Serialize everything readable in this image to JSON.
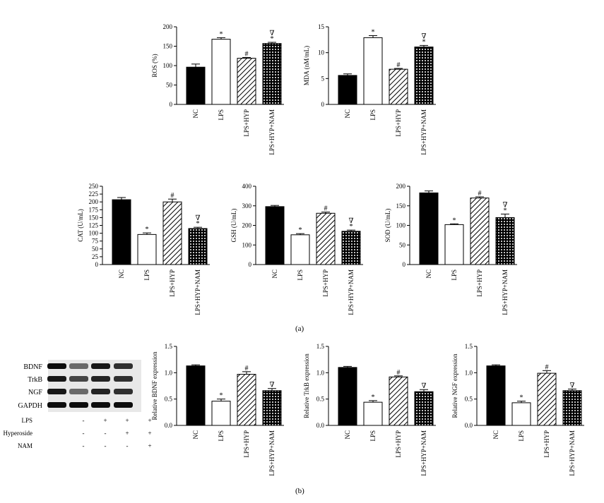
{
  "panel_labels": {
    "a": "(a)",
    "b": "(b)"
  },
  "western_blot": {
    "bands": [
      "BDNF",
      "TrkB",
      "NGF",
      "GAPDH"
    ],
    "treatments": [
      {
        "label": "LPS",
        "marks": [
          "-",
          "+",
          "+",
          "+"
        ]
      },
      {
        "label": "Hyperoside",
        "marks": [
          "-",
          "-",
          "+",
          "+"
        ]
      },
      {
        "label": "NAM",
        "marks": [
          "-",
          "-",
          "-",
          "+"
        ]
      }
    ]
  },
  "colors": {
    "bar_fill": "#000000",
    "bar_stroke": "#000000",
    "empty_fill": "#ffffff",
    "axis": "#000000"
  },
  "chart_data": [
    {
      "id": "ros",
      "type": "bar",
      "ylabel": "ROS (%)",
      "categories": [
        "NC",
        "LPS",
        "LPS+HYP",
        "LPS+HYP+NAM"
      ],
      "fills": [
        "solid",
        "white",
        "hatch",
        "dots"
      ],
      "values": [
        96,
        168,
        119,
        157
      ],
      "errors": [
        8,
        4,
        2,
        3
      ],
      "annotations": [
        "",
        "*",
        "#",
        "∇\n*"
      ],
      "ylim": [
        0,
        200
      ],
      "yticks": [
        "0",
        "50",
        "100",
        "150",
        "200"
      ]
    },
    {
      "id": "mda",
      "type": "bar",
      "ylabel": "MDA (nM/mL)",
      "categories": [
        "NC",
        "LPS",
        "LPS+HYP",
        "LPS+HYP+NAM"
      ],
      "fills": [
        "solid",
        "white",
        "hatch",
        "dots"
      ],
      "values": [
        5.6,
        12.9,
        6.8,
        11.1
      ],
      "errors": [
        0.3,
        0.4,
        0.15,
        0.3
      ],
      "annotations": [
        "",
        "*",
        "#",
        "∇\n*"
      ],
      "ylim": [
        0,
        15
      ],
      "yticks": [
        "0",
        "5",
        "10",
        "15"
      ]
    },
    {
      "id": "cat",
      "type": "bar",
      "ylabel": "CAT (U/mL)",
      "categories": [
        "NC",
        "LPS",
        "LPS+HYP",
        "LPS+HYP+NAM"
      ],
      "fills": [
        "solid",
        "white",
        "hatch",
        "dots"
      ],
      "values": [
        207,
        96,
        200,
        115
      ],
      "errors": [
        7,
        5,
        9,
        4
      ],
      "annotations": [
        "",
        "*",
        "#",
        "∇\n*"
      ],
      "ylim": [
        0,
        250
      ],
      "yticks": [
        "0",
        "25",
        "50",
        "75",
        "100",
        "125",
        "150",
        "175",
        "200",
        "225",
        "250"
      ]
    },
    {
      "id": "gsh",
      "type": "bar",
      "ylabel": "GSH (U/mL)",
      "categories": [
        "NC",
        "LPS",
        "LPS+HYP",
        "LPS+HYP+NAM"
      ],
      "fills": [
        "solid",
        "white",
        "hatch",
        "dots"
      ],
      "values": [
        296,
        152,
        262,
        170
      ],
      "errors": [
        6,
        6,
        6,
        6
      ],
      "annotations": [
        "",
        "*",
        "#",
        "∇\n*"
      ],
      "ylim": [
        0,
        400
      ],
      "yticks": [
        "0",
        "100",
        "200",
        "300",
        "400"
      ]
    },
    {
      "id": "sod",
      "type": "bar",
      "ylabel": "SOD (U/mL)",
      "categories": [
        "NC",
        "LPS",
        "LPS+HYP",
        "LPS+HYP+NAM"
      ],
      "fills": [
        "solid",
        "white",
        "hatch",
        "dots"
      ],
      "values": [
        183,
        102,
        170,
        120
      ],
      "errors": [
        5,
        2,
        3,
        9
      ],
      "annotations": [
        "",
        "*",
        "#",
        "∇\n*"
      ],
      "ylim": [
        0,
        200
      ],
      "yticks": [
        "0",
        "50",
        "100",
        "150",
        "200"
      ]
    },
    {
      "id": "bdnf",
      "type": "bar",
      "ylabel": "Relative BDNF expression",
      "categories": [
        "NC",
        "LPS",
        "LPS+HYP",
        "LPS+HYP+NAM"
      ],
      "fills": [
        "solid",
        "white",
        "hatch",
        "dots"
      ],
      "values": [
        1.13,
        0.46,
        0.97,
        0.66
      ],
      "errors": [
        0.02,
        0.04,
        0.05,
        0.04
      ],
      "annotations": [
        "",
        "*",
        "#",
        "∇"
      ],
      "ylim": [
        0,
        1.5
      ],
      "yticks": [
        "0.0",
        "0.5",
        "1.0",
        "1.5"
      ]
    },
    {
      "id": "trkb",
      "type": "bar",
      "ylabel": "Relative TrkB expression",
      "categories": [
        "NC",
        "LPS",
        "LPS+HYP",
        "LPS+HYP+NAM"
      ],
      "fills": [
        "solid",
        "white",
        "hatch",
        "dots"
      ],
      "values": [
        1.1,
        0.44,
        0.92,
        0.64
      ],
      "errors": [
        0.02,
        0.03,
        0.02,
        0.04
      ],
      "annotations": [
        "",
        "*",
        "#",
        "∇"
      ],
      "ylim": [
        0,
        1.5
      ],
      "yticks": [
        "0.0",
        "0.5",
        "1.0",
        "1.5"
      ]
    },
    {
      "id": "ngf",
      "type": "bar",
      "ylabel": "Relative NGF expression",
      "categories": [
        "NC",
        "LPS",
        "LPS+HYP",
        "LPS+HYP+NAM"
      ],
      "fills": [
        "solid",
        "white",
        "hatch",
        "dots"
      ],
      "values": [
        1.13,
        0.43,
        0.99,
        0.66
      ],
      "errors": [
        0.02,
        0.03,
        0.05,
        0.03
      ],
      "annotations": [
        "",
        "*",
        "#",
        "∇"
      ],
      "ylim": [
        0,
        1.5
      ],
      "yticks": [
        "0.0",
        "0.5",
        "1.0",
        "1.5"
      ]
    }
  ]
}
